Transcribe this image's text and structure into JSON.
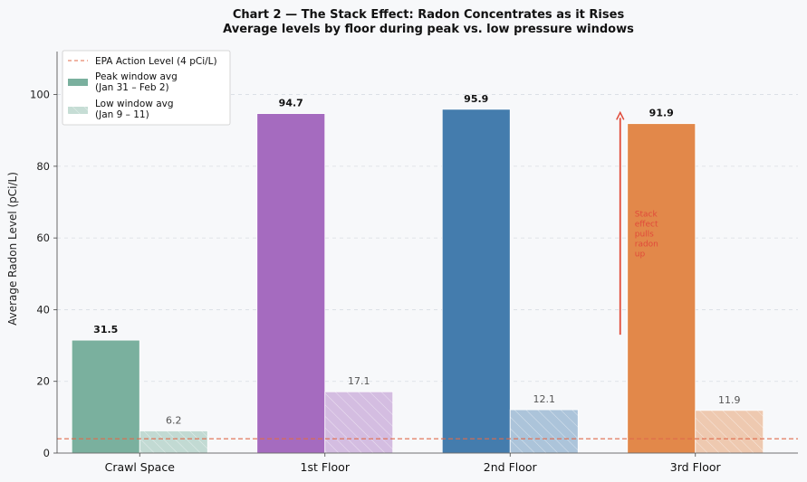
{
  "chart_data": {
    "type": "bar",
    "title": "Chart 2 — The Stack Effect: Radon Concentrates as it Rises",
    "subtitle": "Average levels by floor during peak vs. low pressure windows",
    "xlabel": "",
    "ylabel": "Average Radon Level (pCi/L)",
    "ylim": [
      0,
      112
    ],
    "yticks": [
      0,
      20,
      40,
      60,
      80,
      100
    ],
    "grid": true,
    "legend_position": "top-left",
    "categories": [
      "Crawl Space",
      "1st Floor",
      "2nd Floor",
      "3rd Floor"
    ],
    "series": [
      {
        "name": "Peak window avg\n(Jan 31 – Feb 2)",
        "values": [
          31.5,
          94.7,
          95.9,
          91.9
        ],
        "value_labels": [
          "31.5",
          "94.7",
          "95.9",
          "91.9"
        ]
      },
      {
        "name": "Low window avg\n(Jan 9 – 11)",
        "values": [
          6.2,
          17.1,
          12.1,
          11.9
        ],
        "value_labels": [
          "6.2",
          "17.1",
          "12.1",
          "11.9"
        ]
      }
    ],
    "reference_line": {
      "name": "EPA Action Level (4 pCi/L)",
      "value": 4,
      "color": "#e06a4a"
    },
    "bar_colors": [
      "#7ab09e",
      "#a56bbf",
      "#447cad",
      "#e2884a"
    ],
    "legend_colors": {
      "peak": "#7ab09e",
      "low": "#c6ddd5"
    },
    "annotation": {
      "text": "Stack\neffect\npulls\nradon\nup",
      "category_index": 3,
      "arrow_from": 33,
      "arrow_to": 95,
      "color": "#e04a3a"
    }
  }
}
